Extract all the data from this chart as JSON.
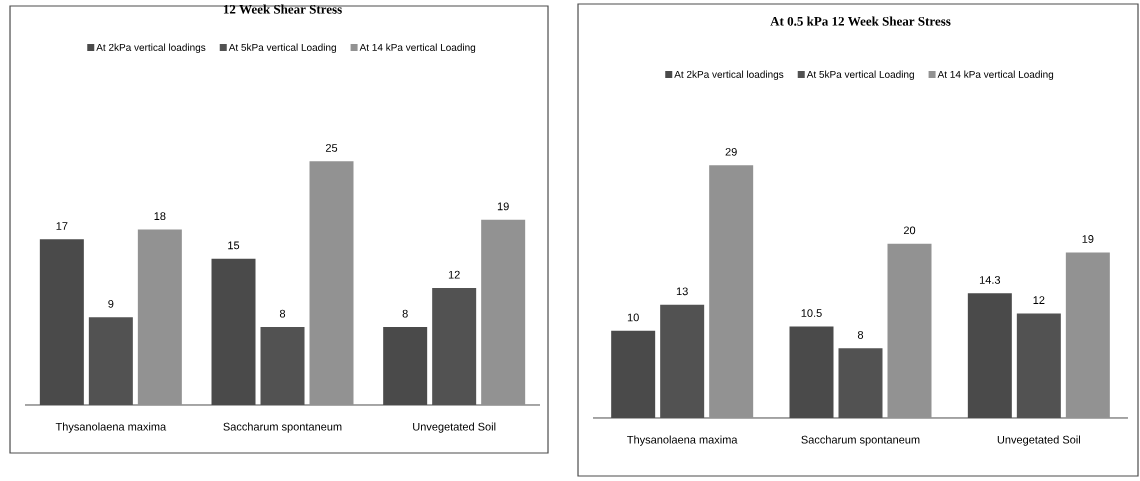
{
  "chart_data": [
    {
      "type": "bar",
      "title": "12 Week Shear Stress",
      "categories": [
        "Thysanolaena maxima",
        "Saccharum spontaneum",
        "Unvegetated Soil"
      ],
      "series": [
        {
          "name": "At 2kPa vertical loadings",
          "color": "#4a4a4a",
          "values": [
            17,
            15,
            8
          ]
        },
        {
          "name": "At 5kPa vertical Loading",
          "color": "#525252",
          "values": [
            9,
            8,
            12
          ]
        },
        {
          "name": "At 14 kPa vertical Loading",
          "color": "#929292",
          "values": [
            18,
            25,
            19
          ]
        }
      ],
      "data_labels": true,
      "legend": "top"
    },
    {
      "type": "bar",
      "title": "At 0.5 kPa 12 Week Shear Stress",
      "categories": [
        "Thysanolaena maxima",
        "Saccharum spontaneum",
        "Unvegetated Soil"
      ],
      "series": [
        {
          "name": "At 2kPa vertical loadings",
          "color": "#4a4a4a",
          "values": [
            10,
            10.5,
            14.3
          ]
        },
        {
          "name": "At 5kPa vertical Loading",
          "color": "#525252",
          "values": [
            13,
            8,
            12
          ]
        },
        {
          "name": "At 14 kPa vertical Loading",
          "color": "#929292",
          "values": [
            29,
            20,
            19
          ]
        }
      ],
      "data_labels": true,
      "legend": "top"
    }
  ]
}
